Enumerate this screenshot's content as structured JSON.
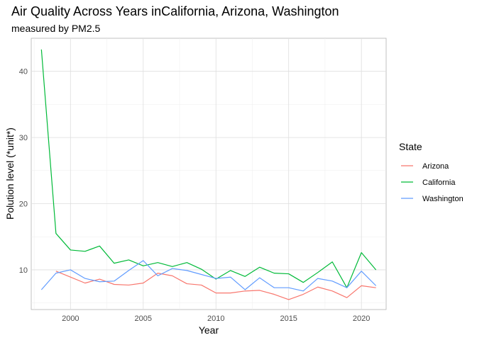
{
  "chart_data": {
    "type": "line",
    "title": "Air Quality Across Years inCalifornia, Arizona, Washington",
    "subtitle": "measured by PM2.5",
    "xlabel": "Year",
    "ylabel": "Polution level (*unit*)",
    "xlim": [
      1997.3,
      2021.7
    ],
    "ylim": [
      4.0,
      45.0
    ],
    "x_ticks": [
      2000,
      2005,
      2010,
      2015,
      2020
    ],
    "y_ticks": [
      10,
      20,
      30,
      40
    ],
    "grid": true,
    "legend": {
      "title": "State",
      "position": "right"
    },
    "series": [
      {
        "name": "Arizona",
        "color": "#F8766D",
        "x": [
          1999,
          2000,
          2001,
          2002,
          2003,
          2004,
          2005,
          2006,
          2007,
          2008,
          2009,
          2010,
          2011,
          2012,
          2013,
          2014,
          2015,
          2016,
          2017,
          2018,
          2019,
          2020,
          2021
        ],
        "values": [
          9.8,
          8.9,
          8.0,
          8.6,
          7.8,
          7.7,
          8.0,
          9.5,
          9.1,
          7.9,
          7.7,
          6.5,
          6.5,
          6.8,
          6.9,
          6.3,
          5.5,
          6.3,
          7.4,
          6.8,
          5.8,
          7.6,
          7.3
        ]
      },
      {
        "name": "California",
        "color": "#00BA38",
        "x": [
          1998,
          1999,
          2000,
          2001,
          2002,
          2003,
          2004,
          2005,
          2006,
          2007,
          2008,
          2009,
          2010,
          2011,
          2012,
          2013,
          2014,
          2015,
          2016,
          2017,
          2018,
          2019,
          2020,
          2021
        ],
        "values": [
          43.3,
          15.5,
          13.0,
          12.8,
          13.6,
          11.0,
          11.5,
          10.6,
          11.1,
          10.5,
          11.1,
          10.1,
          8.6,
          9.9,
          9.0,
          10.4,
          9.5,
          9.4,
          8.1,
          9.6,
          11.2,
          7.3,
          12.6,
          10.0
        ]
      },
      {
        "name": "Washington",
        "color": "#619CFF",
        "x": [
          1998,
          1999,
          2000,
          2001,
          2002,
          2003,
          2004,
          2005,
          2006,
          2007,
          2008,
          2009,
          2010,
          2011,
          2012,
          2013,
          2014,
          2015,
          2016,
          2017,
          2018,
          2019,
          2020,
          2021
        ],
        "values": [
          7.0,
          9.5,
          10.0,
          8.7,
          8.2,
          8.3,
          9.9,
          11.4,
          9.1,
          10.2,
          9.9,
          9.3,
          8.7,
          8.9,
          7.0,
          8.8,
          7.3,
          7.3,
          6.8,
          8.7,
          8.3,
          7.3,
          9.8,
          7.6
        ]
      }
    ]
  }
}
